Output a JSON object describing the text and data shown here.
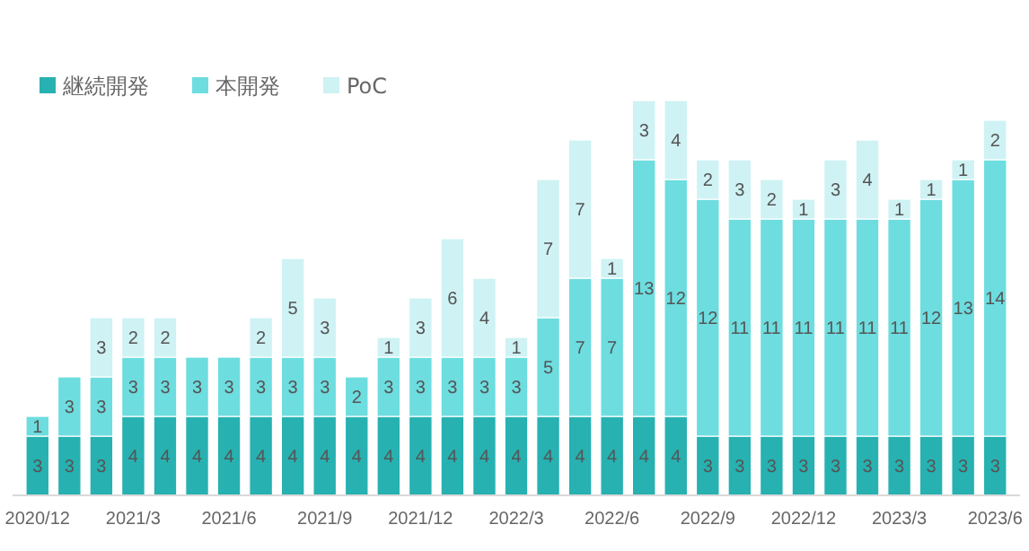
{
  "chart_data": {
    "type": "bar",
    "stacked": true,
    "data_labels": true,
    "legend": "top left",
    "grid": false,
    "categories": [
      "2020/12",
      null,
      null,
      "2021/3",
      null,
      null,
      "2021/6",
      null,
      null,
      "2021/9",
      null,
      null,
      "2021/12",
      null,
      null,
      "2022/3",
      null,
      null,
      "2022/6",
      null,
      null,
      "2022/9",
      null,
      null,
      "2022/12",
      null,
      null,
      "2023/3",
      null,
      null,
      "2023/6"
    ],
    "series": [
      {
        "name": "継続開発",
        "color": "#27b1b1",
        "values": [
          3,
          3,
          3,
          4,
          4,
          4,
          4,
          4,
          4,
          4,
          4,
          4,
          4,
          4,
          4,
          4,
          4,
          4,
          4,
          4,
          4,
          3,
          3,
          3,
          3,
          3,
          3,
          3,
          3,
          3,
          3
        ]
      },
      {
        "name": "本開発",
        "color": "#6ddddf",
        "values": [
          1,
          3,
          3,
          3,
          3,
          3,
          3,
          3,
          3,
          3,
          2,
          3,
          3,
          3,
          3,
          3,
          5,
          7,
          7,
          13,
          12,
          12,
          11,
          11,
          11,
          11,
          11,
          11,
          12,
          13,
          14
        ]
      },
      {
        "name": "PoC",
        "color": "#cff2f4",
        "values": [
          null,
          null,
          3,
          2,
          2,
          null,
          null,
          2,
          5,
          3,
          null,
          1,
          3,
          6,
          4,
          1,
          7,
          7,
          1,
          3,
          4,
          2,
          3,
          2,
          1,
          3,
          4,
          1,
          1,
          1,
          2
        ]
      }
    ]
  }
}
